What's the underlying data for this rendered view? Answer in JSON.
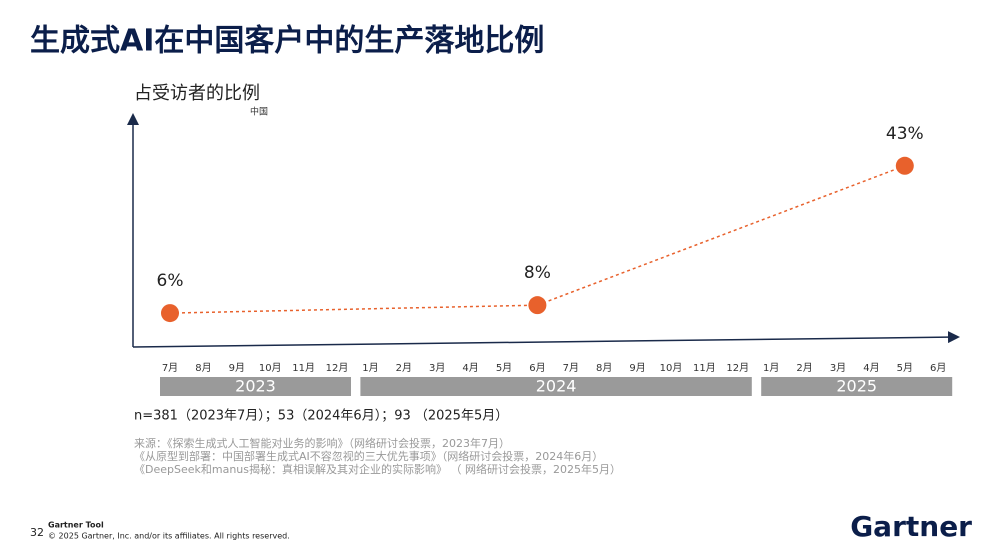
{
  "chart_data": {
    "type": "line",
    "title": "生成式AI在中国客户中的生产落地比例",
    "subtitle": "占受访者的比例",
    "region": "中国",
    "categories": [
      "7月",
      "8月",
      "9月",
      "10月",
      "11月",
      "12月",
      "1月",
      "2月",
      "3月",
      "4月",
      "5月",
      "6月",
      "7月",
      "8月",
      "9月",
      "10月",
      "11月",
      "12月",
      "1月",
      "2月",
      "3月",
      "4月",
      "5月",
      "6月"
    ],
    "years": [
      "2023",
      "2024",
      "2025"
    ],
    "values": [
      6,
      null,
      null,
      null,
      null,
      null,
      null,
      null,
      null,
      null,
      null,
      8,
      null,
      null,
      null,
      null,
      null,
      null,
      null,
      null,
      null,
      null,
      43,
      null
    ],
    "value_labels": [
      "6%",
      null,
      null,
      null,
      null,
      null,
      null,
      null,
      null,
      null,
      null,
      "8%",
      null,
      null,
      null,
      null,
      null,
      null,
      null,
      null,
      null,
      null,
      "43%",
      null
    ],
    "color": "#e8612c",
    "ylim": [
      0,
      55
    ],
    "note": "n=381（2023年7月）；53（2024年6月）；93 （2025年5月）",
    "sources": [
      "来源：《探索生成式人工智能对业务的影响》（网络研讨会投票，2023年7月）",
      "《从原型到部署：中国部署生成式AI不容忽视的三大优先事项》（网络研讨会投票，2024年6月）",
      "《DeepSeek和manus揭秘：真相误解及其对企业的实际影响》 （ 网络研讨会投票，2025年5月）"
    ]
  },
  "footer": {
    "page": "32",
    "tool": "Gartner Tool",
    "copyright": "© 2025 Gartner, Inc. and/or its affiliates. All rights reserved.",
    "logo": "Gartner"
  }
}
